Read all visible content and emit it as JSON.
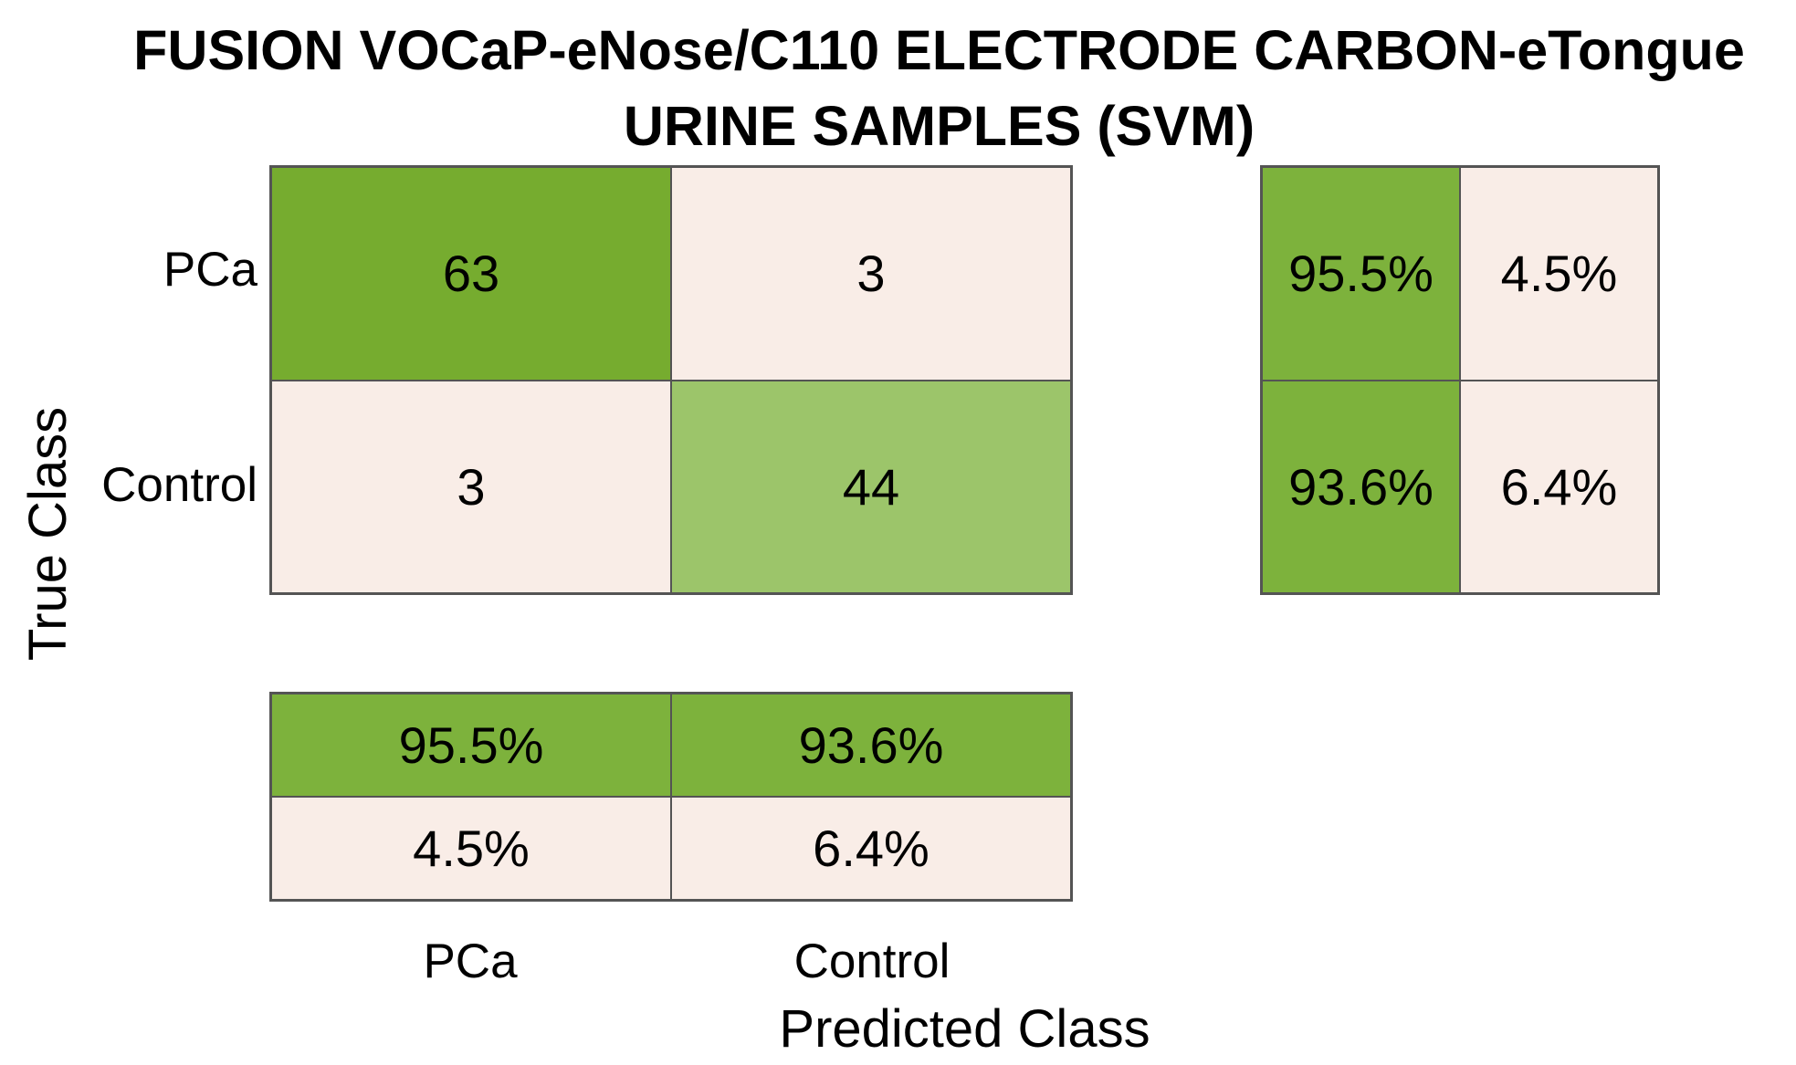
{
  "title": {
    "line1": "FUSION VOCaP-eNose/C110 ELECTRODE CARBON-eTongue",
    "line2": "URINE SAMPLES (SVM)"
  },
  "axes": {
    "xlabel": "Predicted Class",
    "ylabel": "True Class"
  },
  "colors": {
    "diagonal_green": "#76AC2F",
    "light_green": "#9CC56A",
    "off_diagonal_pink": "#F9EDE7",
    "summary_green": "#7DB23C",
    "grid_line": "#545454",
    "text": "#000000",
    "background": "#FFFFFF"
  },
  "chart_data": {
    "type": "heatmap",
    "subtype": "confusion-matrix",
    "title": "FUSION VOCaP-eNose/C110 ELECTRODE CARBON-eTongue URINE SAMPLES (SVM)",
    "xlabel": "Predicted Class",
    "ylabel": "True Class",
    "x_categories": [
      "PCa",
      "Control"
    ],
    "y_categories": [
      "PCa",
      "Control"
    ],
    "matrix": [
      [
        63,
        3
      ],
      [
        3,
        44
      ]
    ],
    "row_summary_pct": [
      [
        95.5,
        4.5
      ],
      [
        93.6,
        6.4
      ]
    ],
    "column_summary_pct": [
      [
        95.5,
        93.6
      ],
      [
        4.5,
        6.4
      ]
    ],
    "row_summary_display": [
      [
        "95.5%",
        "4.5%"
      ],
      [
        "93.6%",
        "6.4%"
      ]
    ],
    "column_summary_display": [
      [
        "95.5%",
        "93.6%"
      ],
      [
        "4.5%",
        "6.4%"
      ]
    ],
    "legend": "none",
    "grid": "cell-borders"
  }
}
